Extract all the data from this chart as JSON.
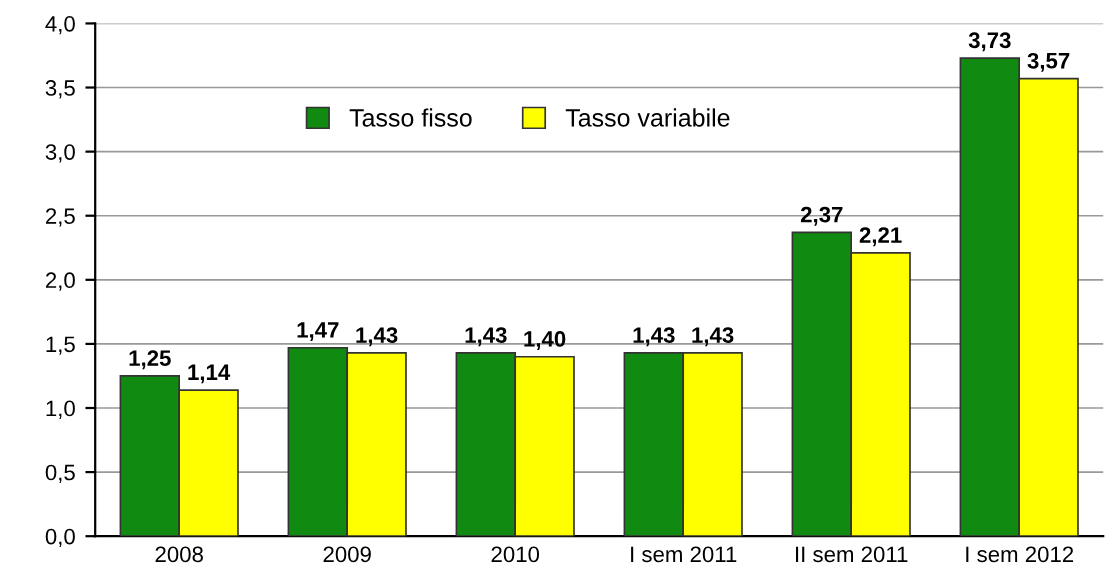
{
  "chart_data": {
    "type": "bar",
    "categories": [
      "2008",
      "2009",
      "2010",
      "I sem 2011",
      "II sem 2011",
      "I sem 2012"
    ],
    "series": [
      {
        "name": "Tasso fisso",
        "color": "#118a11",
        "values": [
          1.25,
          1.47,
          1.43,
          1.43,
          2.37,
          3.73
        ],
        "value_labels": [
          "1,25",
          "1,47",
          "1,43",
          "1,43",
          "2,37",
          "3,73"
        ]
      },
      {
        "name": "Tasso variabile",
        "color": "#ffff00",
        "values": [
          1.14,
          1.43,
          1.4,
          1.43,
          2.21,
          3.57
        ],
        "value_labels": [
          "1,14",
          "1,43",
          "1,40",
          "1,43",
          "2,21",
          "3,57"
        ]
      }
    ],
    "ylim": [
      0,
      4
    ],
    "yticks": [
      {
        "value": 0,
        "label": "0,0"
      },
      {
        "value": 0.5,
        "label": "0,5"
      },
      {
        "value": 1,
        "label": "1,0"
      },
      {
        "value": 1.5,
        "label": "1,5"
      },
      {
        "value": 2,
        "label": "2,0"
      },
      {
        "value": 2.5,
        "label": "2,5"
      },
      {
        "value": 3,
        "label": "3,0"
      },
      {
        "value": 3.5,
        "label": "3,5"
      },
      {
        "value": 4,
        "label": "4,0"
      }
    ],
    "grid": "y",
    "legend": "top"
  }
}
